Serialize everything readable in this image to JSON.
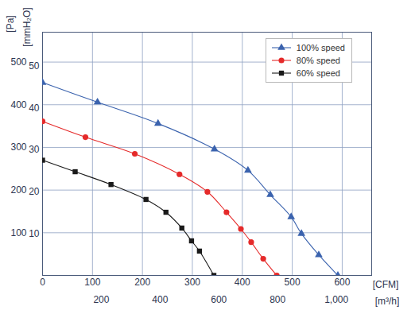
{
  "chart_data": {
    "type": "line",
    "x_label": "[m³/h]",
    "x2_label": "[CFM]",
    "y_label": "[Pa]",
    "y2_label": "[mmH₂O]",
    "xlim": [
      0,
      1120
    ],
    "xticks": [
      200,
      400,
      600,
      800,
      1000
    ],
    "x2lim": [
      0,
      659
    ],
    "x2ticks": [
      0,
      100,
      200,
      300,
      400,
      500,
      600
    ],
    "ylim": [
      0,
      570
    ],
    "yticks": [
      100,
      200,
      300,
      400,
      500
    ],
    "y2lim": [
      0,
      58.1
    ],
    "y2ticks": [
      10,
      20,
      30,
      40,
      50
    ],
    "grid": true,
    "legend": "top-right",
    "series": [
      {
        "name": "100% speed",
        "color": "#3b63ae",
        "marker": "triangle",
        "x": [
          0,
          187,
          393,
          585,
          699,
          775,
          846,
          881,
          940,
          1005
        ],
        "values": [
          452,
          406,
          356,
          296,
          246,
          189,
          137,
          98,
          48,
          0
        ]
      },
      {
        "name": "80% speed",
        "color": "#e52a2a",
        "marker": "circle",
        "x": [
          0,
          146,
          314,
          466,
          561,
          626,
          675,
          710,
          751,
          797
        ],
        "values": [
          361,
          324,
          285,
          237,
          196,
          148,
          109,
          78,
          39,
          0
        ]
      },
      {
        "name": "60% speed",
        "color": "#1a1a1a",
        "marker": "square",
        "x": [
          0,
          111,
          233,
          352,
          420,
          474,
          507,
          534,
          583
        ],
        "values": [
          270,
          243,
          213,
          178,
          148,
          111,
          81,
          57,
          0
        ]
      }
    ]
  }
}
